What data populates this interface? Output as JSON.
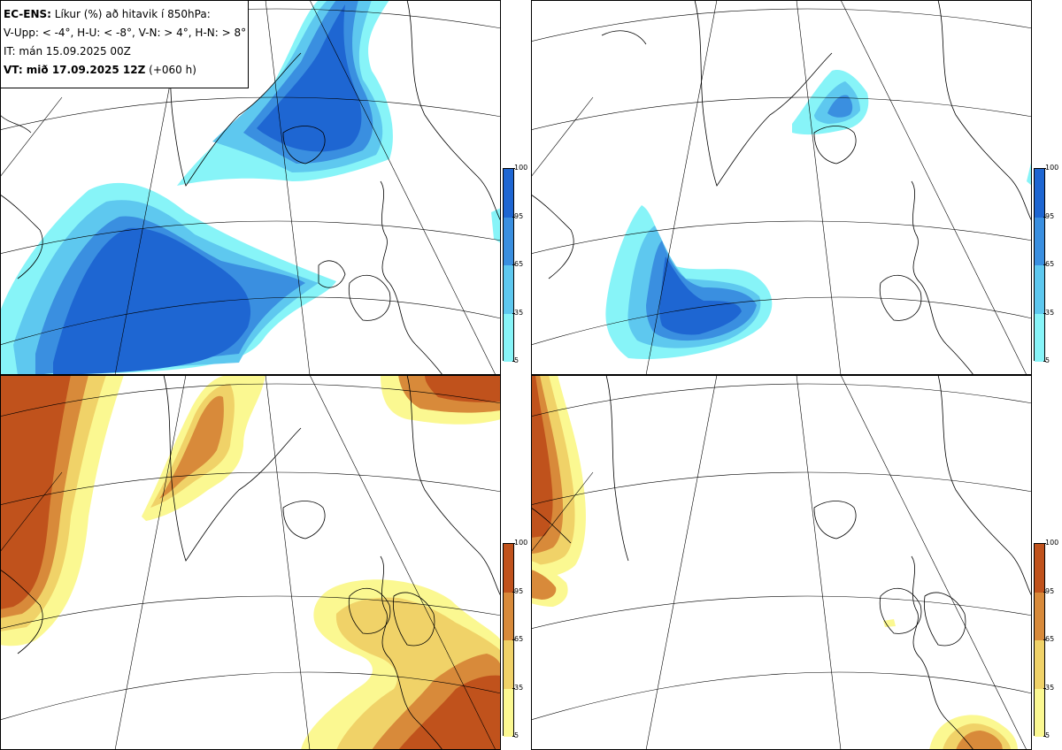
{
  "header": {
    "line1_bold": "EC-ENS:",
    "line1_rest": " Líkur (%) að hitavik í 850hPa:",
    "line2": "V-Upp: < -4°, H-U: < -8°, V-N: > 4°, H-N: > 8°",
    "line3": "IT: mán 15.09.2025 00Z",
    "line4_bold": "VT: mið 17.09.2025 12Z",
    "line4_rest": " (+060 h)"
  },
  "colorbar": {
    "ticks": [
      "100",
      "95",
      "65",
      "35",
      "5"
    ],
    "cold_colors": [
      "#1e66d2",
      "#3a8fe0",
      "#5ec8ef",
      "#87f4f8"
    ],
    "warm_colors": [
      "#c0521c",
      "#d88a3a",
      "#f0d268",
      "#fbf891"
    ]
  },
  "panels": [
    {
      "id": "tl",
      "label": "V-Upp",
      "scheme": "cold"
    },
    {
      "id": "tr",
      "label": "H-U",
      "scheme": "cold"
    },
    {
      "id": "bl",
      "label": "V-N",
      "scheme": "warm"
    },
    {
      "id": "br",
      "label": "H-N",
      "scheme": "warm"
    }
  ]
}
